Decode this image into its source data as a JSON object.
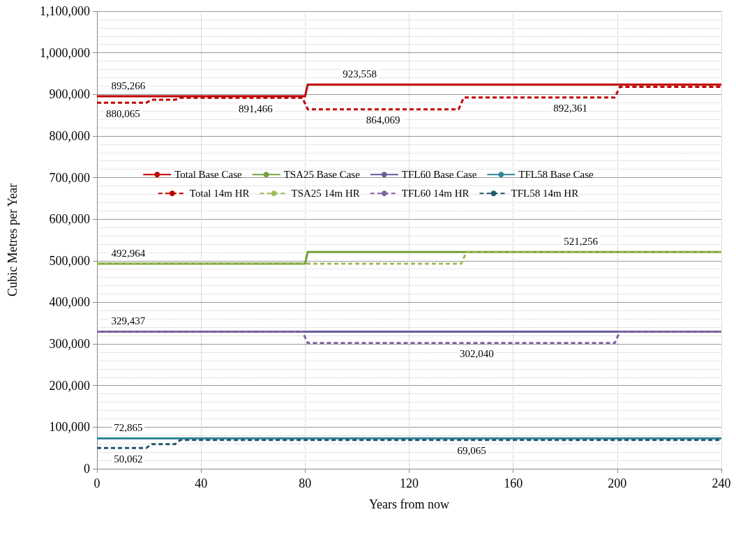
{
  "chart_data": {
    "type": "line",
    "xlabel": "Years from now",
    "ylabel": "Cubic Metres per Year",
    "xlim": [
      0,
      240
    ],
    "xticks": [
      0,
      40,
      80,
      120,
      160,
      200,
      240
    ],
    "ylim": [
      0,
      1100000
    ],
    "yticks": [
      0,
      {
        "value": 100000,
        "label": "100,000"
      },
      {
        "value": 200000,
        "label": "200,000"
      },
      {
        "value": 300000,
        "label": "300,000"
      },
      {
        "value": 400000,
        "label": "400,000"
      },
      {
        "value": 500000,
        "label": "500,000"
      },
      {
        "value": 600000,
        "label": "600,000"
      },
      {
        "value": 700000,
        "label": "700,000"
      },
      {
        "value": 800000,
        "label": "800,000"
      },
      {
        "value": 900000,
        "label": "900,000"
      },
      {
        "value": 1000000,
        "label": "1,000,000"
      },
      {
        "value": 1100000,
        "label": "1,100,000"
      }
    ],
    "grid": true,
    "legend": "center",
    "marker": "none",
    "series": [
      {
        "name": "Total Base Case",
        "color": "#c00000",
        "line_style": "solid",
        "x": [
          0,
          12,
          80,
          81,
          101,
          240
        ],
        "values": [
          895266,
          895266,
          895266,
          923558,
          923558,
          923558
        ],
        "value_labels": [
          null,
          "895,266",
          null,
          null,
          "923,558",
          null
        ]
      },
      {
        "name": "TSA25 Base Case",
        "color": "#77a03c",
        "line_style": "solid",
        "x": [
          0,
          12,
          80,
          81,
          186,
          240
        ],
        "values": [
          492964,
          492964,
          492964,
          521256,
          521256,
          521256
        ],
        "value_labels": [
          null,
          "492,964",
          null,
          null,
          "521,256",
          null
        ]
      },
      {
        "name": "TFL60 Base Case",
        "color": "#6a5a9a",
        "line_style": "solid",
        "x": [
          0,
          12,
          240
        ],
        "values": [
          329437,
          329437,
          329437
        ],
        "value_labels": [
          null,
          "329,437",
          null
        ]
      },
      {
        "name": "TFL58 Base Case",
        "color": "#31859c",
        "line_style": "solid",
        "x": [
          0,
          12,
          240
        ],
        "values": [
          72865,
          72865,
          72865
        ],
        "value_labels": [
          null,
          "72,865",
          null
        ]
      },
      {
        "name": "Total 14m HR",
        "color": "#c00000",
        "line_style": "dashed",
        "x": [
          0,
          10,
          19,
          21,
          30,
          32,
          61,
          79,
          81,
          110,
          139,
          141,
          182,
          199,
          201,
          240
        ],
        "values": [
          880065,
          880065,
          880065,
          887000,
          887000,
          891466,
          891466,
          891466,
          864069,
          864069,
          864069,
          892361,
          892361,
          892361,
          918000,
          918000
        ],
        "value_labels": [
          null,
          "880,065",
          null,
          null,
          null,
          null,
          "891,466",
          null,
          null,
          "864,069",
          null,
          null,
          "892,361",
          null,
          null,
          null
        ]
      },
      {
        "name": "TSA25 14m HR",
        "color": "#9bbb59",
        "line_style": "dashed",
        "x": [
          0,
          80,
          81,
          140,
          142,
          240
        ],
        "values": [
          492964,
          492964,
          492964,
          492964,
          521256,
          521256
        ]
      },
      {
        "name": "TFL60 14m HR",
        "color": "#8064a2",
        "line_style": "dashed",
        "x": [
          0,
          79,
          81,
          146,
          199,
          201,
          240
        ],
        "values": [
          329437,
          329437,
          302040,
          302040,
          302040,
          329437,
          329437
        ],
        "value_labels": [
          null,
          null,
          null,
          "302,040",
          null,
          null,
          null
        ]
      },
      {
        "name": "TFL58 14m HR",
        "color": "#215968",
        "line_style": "dashed",
        "x": [
          0,
          12,
          19,
          21,
          30,
          32,
          144,
          240
        ],
        "values": [
          50062,
          50062,
          50062,
          59000,
          59000,
          69065,
          69065,
          69065
        ],
        "value_labels": [
          null,
          "50,062",
          null,
          null,
          null,
          null,
          "69,065",
          null
        ]
      }
    ]
  }
}
